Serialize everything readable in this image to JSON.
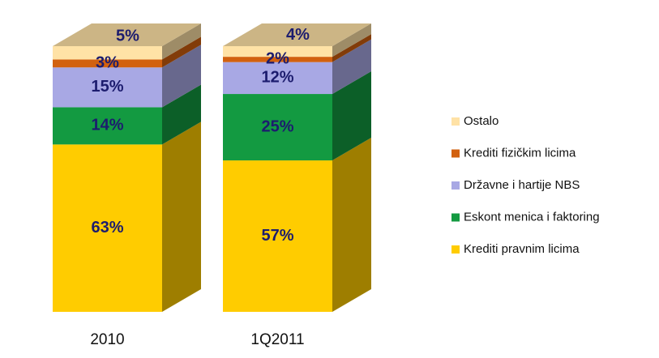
{
  "chart_data": {
    "type": "bar3d_stacked",
    "categories": [
      "2010",
      "1Q2011"
    ],
    "ylim": [
      0,
      100
    ],
    "series": [
      {
        "name": "Krediti pravnim licima",
        "color": "#ffcc00",
        "values": [
          63,
          57
        ],
        "value_labels": [
          "63%",
          "57%"
        ]
      },
      {
        "name": "Eskont menica i faktoring",
        "color": "#139a41",
        "values": [
          14,
          25
        ],
        "value_labels": [
          "14%",
          "25%"
        ]
      },
      {
        "name": "Državne i hartije NBS",
        "color": "#a8a8e4",
        "values": [
          15,
          12
        ],
        "value_labels": [
          "15%",
          "12%"
        ]
      },
      {
        "name": "Krediti fizičkim licima",
        "color": "#d2610f",
        "values": [
          3,
          2
        ],
        "value_labels": [
          "3%",
          "2%"
        ]
      },
      {
        "name": "Ostalo",
        "color": "#ffe2a6",
        "values": [
          5,
          4
        ],
        "value_labels": [
          "5%",
          "4%"
        ]
      }
    ]
  }
}
